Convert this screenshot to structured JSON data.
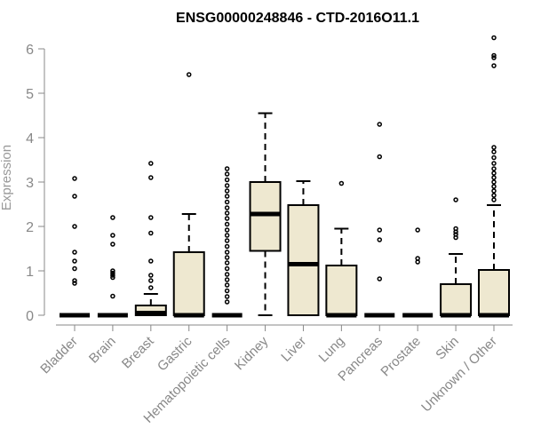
{
  "chart_data": {
    "type": "box",
    "title": "ENSG00000248846 - CTD-2016O11.1",
    "xlabel": "",
    "ylabel": "Expression",
    "ylim": [
      0,
      6.2
    ],
    "yticks": [
      0,
      1,
      2,
      3,
      4,
      5,
      6
    ],
    "grid": false,
    "legend": "none",
    "colors": {
      "box_fill": "#EEE8D0",
      "stroke": "#000000",
      "axis": "#888888"
    },
    "categories": [
      "Bladder",
      "Brain",
      "Breast",
      "Gastric",
      "Hematopoietic cells",
      "Kidney",
      "Liver",
      "Lung",
      "Pancreas",
      "Prostate",
      "Skin",
      "Unknown / Other"
    ],
    "boxes": [
      {
        "name": "Bladder",
        "q1": 0,
        "median": 0,
        "q3": 0,
        "whisker_low": 0,
        "whisker_high": 0,
        "outliers": [
          0.72,
          0.78,
          1.05,
          1.22,
          1.42,
          2.0,
          2.68,
          3.08
        ]
      },
      {
        "name": "Brain",
        "q1": 0,
        "median": 0,
        "q3": 0,
        "whisker_low": 0,
        "whisker_high": 0,
        "outliers": [
          0.43,
          0.85,
          0.9,
          0.95,
          1.0,
          1.6,
          1.8,
          2.2
        ]
      },
      {
        "name": "Breast",
        "q1": 0,
        "median": 0.05,
        "q3": 0.22,
        "whisker_low": 0,
        "whisker_high": 0.48,
        "outliers": [
          0.62,
          0.78,
          0.9,
          1.22,
          1.85,
          2.2,
          3.1,
          3.42
        ]
      },
      {
        "name": "Gastric",
        "q1": 0,
        "median": 0,
        "q3": 1.42,
        "whisker_low": 0,
        "whisker_high": 2.28,
        "outliers": [
          5.42
        ]
      },
      {
        "name": "Hematopoietic cells",
        "q1": 0,
        "median": 0,
        "q3": 0,
        "whisker_low": 0,
        "whisker_high": 0,
        "outliers": [
          0.3,
          0.42,
          0.55,
          0.68,
          0.8,
          0.92,
          1.05,
          1.18,
          1.3,
          1.42,
          1.55,
          1.68,
          1.8,
          1.92,
          2.05,
          2.18,
          2.3,
          2.42,
          2.55,
          2.68,
          2.8,
          2.92,
          3.05,
          3.18,
          3.3
        ]
      },
      {
        "name": "Kidney",
        "q1": 1.45,
        "median": 2.28,
        "q3": 3.0,
        "whisker_low": 0,
        "whisker_high": 4.55,
        "outliers": []
      },
      {
        "name": "Liver",
        "q1": 0,
        "median": 1.15,
        "q3": 2.48,
        "whisker_low": 0,
        "whisker_high": 3.02,
        "outliers": []
      },
      {
        "name": "Lung",
        "q1": 0,
        "median": 0,
        "q3": 1.12,
        "whisker_low": 0,
        "whisker_high": 1.95,
        "outliers": [
          2.97
        ]
      },
      {
        "name": "Pancreas",
        "q1": 0,
        "median": 0,
        "q3": 0,
        "whisker_low": 0,
        "whisker_high": 0,
        "outliers": [
          0.82,
          1.7,
          1.92,
          3.57,
          4.3
        ]
      },
      {
        "name": "Prostate",
        "q1": 0,
        "median": 0,
        "q3": 0,
        "whisker_low": 0,
        "whisker_high": 0,
        "outliers": [
          1.2,
          1.28,
          1.92
        ]
      },
      {
        "name": "Skin",
        "q1": 0,
        "median": 0,
        "q3": 0.7,
        "whisker_low": 0,
        "whisker_high": 1.38,
        "outliers": [
          1.75,
          1.82,
          1.88,
          1.95,
          2.6
        ]
      },
      {
        "name": "Unknown / Other",
        "q1": 0,
        "median": 0,
        "q3": 1.02,
        "whisker_low": 0,
        "whisker_high": 2.48,
        "outliers": [
          2.6,
          2.7,
          2.8,
          2.9,
          3.0,
          3.1,
          3.2,
          3.3,
          3.42,
          3.55,
          3.68,
          3.78,
          5.62,
          5.8,
          5.85,
          6.25
        ]
      }
    ]
  }
}
